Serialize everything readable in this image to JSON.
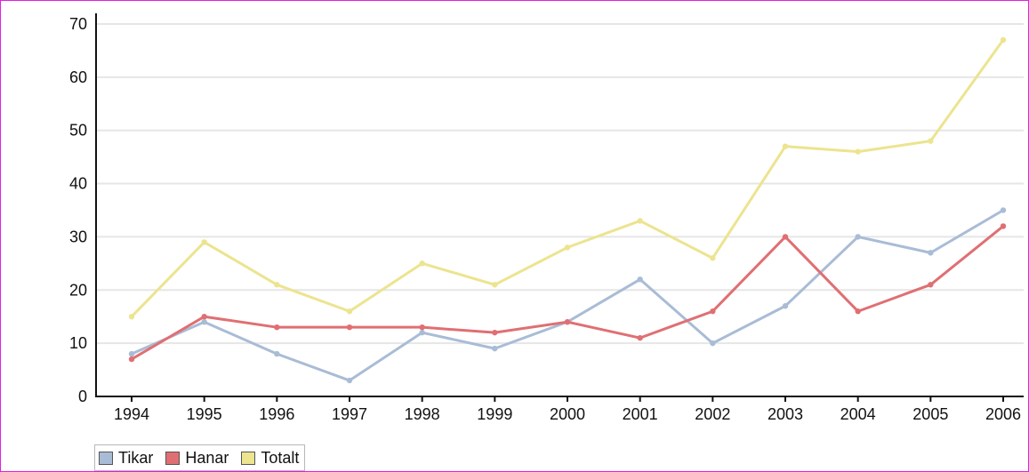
{
  "chart_data": {
    "type": "line",
    "x": [
      "1994",
      "1995",
      "1996",
      "1997",
      "1998",
      "1999",
      "2000",
      "2001",
      "2002",
      "2003",
      "2004",
      "2005",
      "2006"
    ],
    "series": [
      {
        "name": "Tikar",
        "color": "#a9bcd6",
        "values": [
          8,
          14,
          8,
          3,
          12,
          9,
          14,
          22,
          10,
          17,
          30,
          27,
          35
        ]
      },
      {
        "name": "Hanar",
        "color": "#e06f73",
        "values": [
          7,
          15,
          13,
          13,
          13,
          12,
          14,
          11,
          16,
          30,
          16,
          21,
          32
        ]
      },
      {
        "name": "Totalt",
        "color": "#ece48f",
        "values": [
          15,
          29,
          21,
          16,
          25,
          21,
          28,
          33,
          26,
          47,
          46,
          48,
          67
        ]
      }
    ],
    "yticks": [
      0,
      10,
      20,
      30,
      40,
      50,
      60,
      70
    ],
    "ylim": [
      0,
      72
    ],
    "grid": true,
    "legend_position": "bottom-left",
    "title": "",
    "xlabel": "",
    "ylabel": ""
  }
}
